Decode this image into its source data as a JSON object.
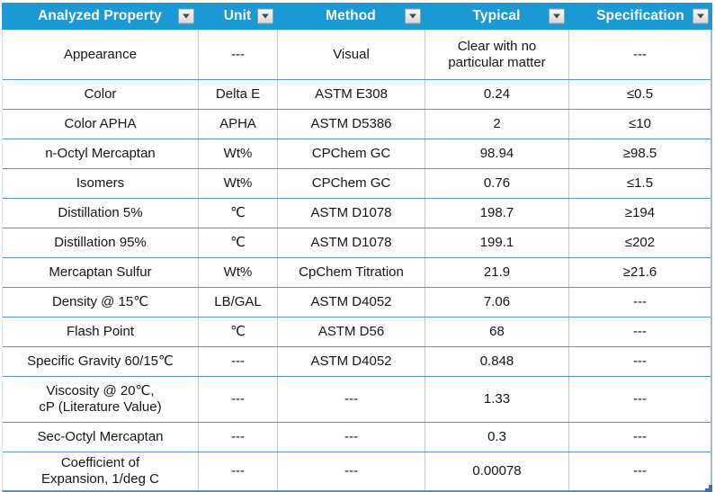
{
  "header": {
    "columns": [
      {
        "id": "property",
        "label": "Analyzed Property"
      },
      {
        "id": "unit",
        "label": "Unit"
      },
      {
        "id": "method",
        "label": "Method"
      },
      {
        "id": "typical",
        "label": "Typical"
      },
      {
        "id": "specification",
        "label": "Specification"
      }
    ]
  },
  "table": {
    "rows": [
      [
        "Appearance",
        "---",
        "Visual",
        "Clear with no\nparticular matter",
        "---"
      ],
      [
        "Color",
        "Delta E",
        "ASTM E308",
        "0.24",
        "≤0.5"
      ],
      [
        "Color APHA",
        "APHA",
        "ASTM D5386",
        "2",
        "≤10"
      ],
      [
        "n-Octyl Mercaptan",
        "Wt%",
        "CPChem GC",
        "98.94",
        "≥98.5"
      ],
      [
        "Isomers",
        "Wt%",
        "CPChem GC",
        "0.76",
        "≤1.5"
      ],
      [
        "Distillation 5%",
        "℃",
        "ASTM D1078",
        "198.7",
        "≥194"
      ],
      [
        "Distillation 95%",
        "℃",
        "ASTM D1078",
        "199.1",
        "≤202"
      ],
      [
        "Mercaptan Sulfur",
        "Wt%",
        "CpChem Titration",
        "21.9",
        "≥21.6"
      ],
      [
        "Density @ 15℃",
        "LB/GAL",
        "ASTM D4052",
        "7.06",
        "---"
      ],
      [
        "Flash Point",
        "℃",
        "ASTM D56",
        "68",
        "---"
      ],
      [
        "Specific Gravity 60/15℃",
        "---",
        "ASTM D4052",
        "0.848",
        "---"
      ],
      [
        "Viscosity @ 20℃,\ncP (Literature Value)",
        "---",
        "---",
        "1.33",
        "---"
      ],
      [
        "Sec-Octyl Mercaptan",
        "---",
        "---",
        "0.3",
        "---"
      ],
      [
        "Coefficient of\nExpansion, 1/deg C",
        "---",
        "---",
        "0.00078",
        "---"
      ]
    ]
  },
  "icons": {
    "filter_dropdown": "chevron-down-icon",
    "resize_handle": "table-resize-handle"
  },
  "colors": {
    "header_bg": "#1A99D5",
    "header_text": "#FFFFFF",
    "horizontal_grid": "#5592D2",
    "vertical_grid": "#C9C9C9",
    "bottom_border": "#4B92D9",
    "right_border": "#9FBBDE",
    "resize_handle": "#3B6CB5"
  }
}
